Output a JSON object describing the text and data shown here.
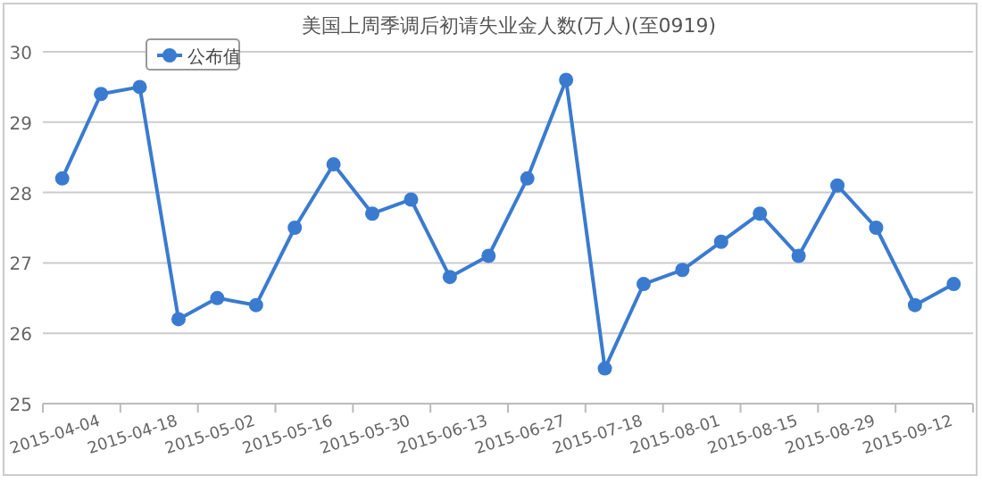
{
  "chart_data": {
    "type": "line",
    "title": "美国上周季调后初请失业金人数(万人)(至0919)",
    "categories": [
      null,
      "2015-04-04",
      null,
      "2015-04-18",
      null,
      "2015-05-02",
      null,
      "2015-05-16",
      null,
      "2015-05-30",
      null,
      "2015-06-13",
      null,
      "2015-06-27",
      null,
      "2015-07-18",
      null,
      "2015-08-01",
      null,
      "2015-08-15",
      null,
      "2015-08-29",
      null,
      "2015-09-12"
    ],
    "series": [
      {
        "name": "公布值",
        "color": "#3a7bd0",
        "values": [
          28.2,
          29.4,
          29.5,
          26.2,
          26.5,
          26.4,
          27.5,
          28.4,
          27.7,
          27.9,
          26.8,
          27.1,
          28.2,
          29.6,
          25.5,
          26.7,
          26.9,
          27.3,
          27.7,
          27.1,
          28.1,
          27.5,
          26.4,
          26.7
        ]
      }
    ],
    "ylim": [
      25,
      30
    ],
    "yticks": [
      25,
      26,
      27,
      28,
      29,
      30
    ],
    "grid": "y",
    "legend": "top left",
    "marker": "circle",
    "line_style": "solid"
  }
}
